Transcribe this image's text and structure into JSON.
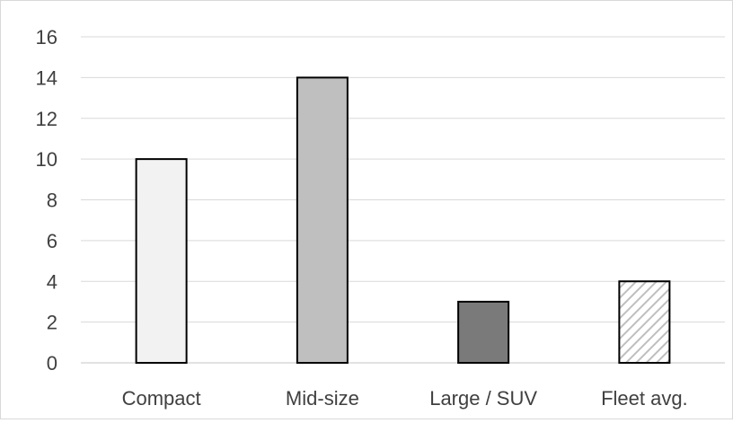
{
  "chart_data": {
    "type": "bar",
    "categories": [
      "Compact",
      "Mid-size",
      "Large / SUV",
      "Fleet avg."
    ],
    "values": [
      10,
      14,
      3,
      4
    ],
    "title": "",
    "xlabel": "",
    "ylabel": "",
    "ylim": [
      0,
      16
    ],
    "yticks": [
      0,
      2,
      4,
      6,
      8,
      10,
      12,
      14,
      16
    ],
    "grid": true,
    "legend": "none",
    "bar_fills": [
      "#f2f2f2",
      "#bfbfbf",
      "#7a7a7a",
      "hatched"
    ],
    "bar_outline": "#000000",
    "grid_color": "#d9d9d9"
  }
}
